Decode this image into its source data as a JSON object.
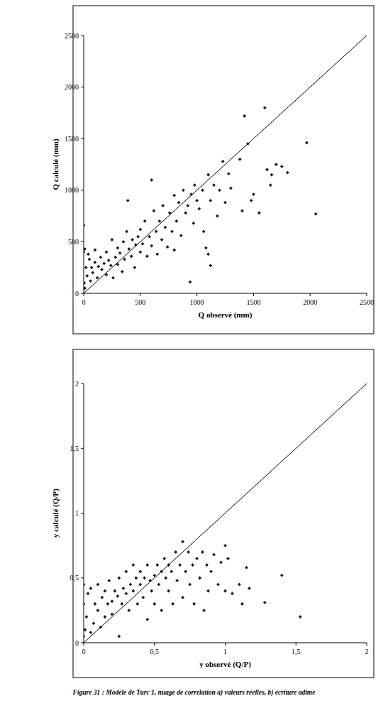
{
  "chart_data": [
    {
      "type": "scatter",
      "xlabel": "Q observé (mm)",
      "ylabel": "Q calculé (mm)",
      "color": "#1a1a1a",
      "marker": "diamond",
      "xlim": [
        0,
        2500
      ],
      "ylim": [
        0,
        2500
      ],
      "xticks": [
        0,
        500,
        1000,
        1500,
        2000,
        2500
      ],
      "yticks": [
        0,
        500,
        1000,
        1500,
        2000,
        2500
      ],
      "x": [
        0,
        0,
        10,
        20,
        5,
        10,
        30,
        40,
        50,
        60,
        70,
        80,
        100,
        100,
        120,
        130,
        150,
        160,
        180,
        200,
        200,
        220,
        240,
        250,
        260,
        280,
        300,
        300,
        320,
        340,
        350,
        360,
        380,
        390,
        400,
        420,
        430,
        450,
        460,
        480,
        500,
        500,
        520,
        540,
        560,
        580,
        600,
        600,
        620,
        640,
        650,
        670,
        690,
        700,
        720,
        740,
        760,
        780,
        800,
        800,
        820,
        840,
        860,
        880,
        900,
        920,
        940,
        950,
        970,
        980,
        1000,
        1020,
        1050,
        1060,
        1080,
        1100,
        1100,
        1120,
        1120,
        1150,
        1180,
        1200,
        1230,
        1250,
        1280,
        1300,
        1380,
        1400,
        1420,
        1450,
        1480,
        1500,
        1550,
        1600,
        1620,
        1650,
        1660,
        1700,
        1750,
        1800,
        1970,
        2050
      ],
      "values": [
        660,
        400,
        430,
        250,
        100,
        50,
        170,
        380,
        330,
        120,
        250,
        200,
        420,
        300,
        150,
        260,
        350,
        230,
        290,
        180,
        400,
        320,
        270,
        520,
        150,
        350,
        280,
        440,
        390,
        210,
        500,
        330,
        600,
        900,
        430,
        360,
        520,
        250,
        470,
        550,
        400,
        620,
        480,
        700,
        360,
        550,
        1100,
        460,
        800,
        600,
        380,
        700,
        520,
        850,
        640,
        450,
        780,
        600,
        950,
        420,
        700,
        880,
        560,
        1000,
        780,
        850,
        110,
        960,
        680,
        1050,
        900,
        820,
        1000,
        600,
        440,
        1150,
        380,
        270,
        900,
        1050,
        750,
        1000,
        1280,
        880,
        1160,
        1020,
        1300,
        800,
        1720,
        1450,
        900,
        960,
        780,
        1800,
        1200,
        1050,
        1150,
        1250,
        1230,
        1170,
        1460,
        770
      ]
    },
    {
      "type": "scatter",
      "xlabel": "y observé (Q/P)",
      "ylabel": "y calculé (Q/P)",
      "color": "#1a1a1a",
      "marker": "diamond",
      "xlim": [
        0,
        2
      ],
      "ylim": [
        0,
        2
      ],
      "xticks": [
        0,
        {
          "value": 0.5,
          "label": "0,5"
        },
        1,
        {
          "value": 1.5,
          "label": "1,5"
        },
        2
      ],
      "yticks": [
        0,
        {
          "value": 0.5,
          "label": "0,5"
        },
        1,
        {
          "value": 1.5,
          "label": "1,5"
        },
        2
      ],
      "x": [
        0,
        0,
        0,
        0.01,
        0.02,
        0.03,
        0.05,
        0.05,
        0.07,
        0.08,
        0.1,
        0.1,
        0.12,
        0.13,
        0.15,
        0.15,
        0.17,
        0.18,
        0.2,
        0.2,
        0.22,
        0.24,
        0.25,
        0.25,
        0.27,
        0.28,
        0.3,
        0.3,
        0.32,
        0.33,
        0.35,
        0.35,
        0.37,
        0.38,
        0.4,
        0.4,
        0.42,
        0.43,
        0.45,
        0.45,
        0.47,
        0.48,
        0.5,
        0.5,
        0.52,
        0.53,
        0.55,
        0.55,
        0.57,
        0.58,
        0.6,
        0.6,
        0.62,
        0.63,
        0.65,
        0.66,
        0.68,
        0.7,
        0.7,
        0.72,
        0.74,
        0.75,
        0.77,
        0.78,
        0.8,
        0.82,
        0.84,
        0.85,
        0.87,
        0.88,
        0.9,
        0.92,
        0.95,
        0.97,
        1.0,
        1.0,
        1.02,
        1.05,
        1.1,
        1.12,
        1.15,
        1.17,
        1.28,
        1.4,
        1.53
      ],
      "values": [
        0.05,
        0.45,
        0.3,
        0.1,
        0.2,
        0.38,
        0.08,
        0.42,
        0.15,
        0.3,
        0.25,
        0.45,
        0.12,
        0.35,
        0.2,
        0.4,
        0.3,
        0.48,
        0.32,
        0.22,
        0.4,
        0.36,
        0.05,
        0.5,
        0.3,
        0.42,
        0.38,
        0.55,
        0.25,
        0.45,
        0.4,
        0.6,
        0.5,
        0.3,
        0.45,
        0.55,
        0.35,
        0.5,
        0.18,
        0.6,
        0.48,
        0.4,
        0.52,
        0.3,
        0.6,
        0.45,
        0.55,
        0.25,
        0.65,
        0.5,
        0.6,
        0.4,
        0.55,
        0.3,
        0.7,
        0.48,
        0.6,
        0.78,
        0.35,
        0.55,
        0.7,
        0.45,
        0.6,
        0.3,
        0.65,
        0.5,
        0.7,
        0.25,
        0.6,
        0.4,
        0.55,
        0.68,
        0.45,
        0.62,
        0.75,
        0.4,
        0.65,
        0.38,
        0.45,
        0.3,
        0.58,
        0.42,
        0.31,
        0.52,
        0.2
      ]
    }
  ],
  "caption": "Figure 31 : Modèle de Turc 1, nuage de corrélation a) valeurs réelles, b) écriture adime"
}
